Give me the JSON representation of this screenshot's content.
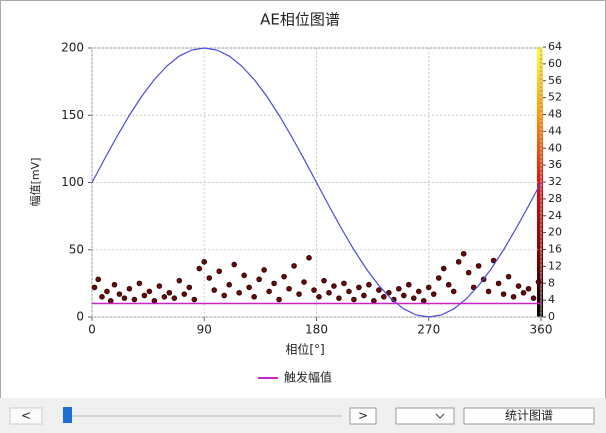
{
  "chart_data": {
    "type": "scatter",
    "title": "AE相位图谱",
    "x_label": "相位[°]",
    "y_label": "幅值[mV]",
    "xlim": [
      0,
      360
    ],
    "xticks": [
      0,
      90,
      180,
      270,
      360
    ],
    "ylim": [
      0,
      200
    ],
    "yticks": [
      0,
      50,
      100,
      150,
      200
    ],
    "grid": true,
    "curve": {
      "color": "#4a4ae0",
      "x": [
        0,
        10,
        20,
        30,
        40,
        50,
        60,
        70,
        80,
        90,
        100,
        110,
        120,
        130,
        140,
        150,
        160,
        170,
        180,
        190,
        200,
        210,
        220,
        230,
        240,
        250,
        260,
        270,
        280,
        290,
        300,
        310,
        320,
        330,
        340,
        350,
        360
      ],
      "values": [
        100,
        117.4,
        134.2,
        150,
        164.3,
        176.6,
        186.6,
        194,
        198.5,
        200,
        198.5,
        194,
        186.6,
        176.6,
        164.3,
        150,
        134.2,
        117.4,
        100,
        82.6,
        65.8,
        50,
        35.7,
        23.4,
        13.4,
        6,
        1.5,
        0,
        1.5,
        6,
        13.4,
        23.4,
        35.7,
        50,
        65.8,
        82.6,
        100
      ]
    },
    "threshold": {
      "name": "触发幅值",
      "color": "#cc22cc",
      "value": 10
    },
    "points": {
      "color": "#6b0a0a",
      "x": [
        2,
        5,
        8,
        12,
        15,
        18,
        22,
        26,
        30,
        34,
        38,
        42,
        46,
        50,
        54,
        58,
        62,
        66,
        70,
        74,
        78,
        82,
        86,
        90,
        94,
        98,
        102,
        106,
        110,
        114,
        118,
        122,
        126,
        130,
        134,
        138,
        142,
        146,
        150,
        154,
        158,
        162,
        166,
        170,
        174,
        178,
        182,
        186,
        190,
        194,
        198,
        202,
        206,
        210,
        214,
        218,
        222,
        226,
        230,
        234,
        238,
        242,
        246,
        250,
        254,
        258,
        262,
        266,
        270,
        274,
        278,
        282,
        286,
        290,
        294,
        298,
        302,
        306,
        310,
        314,
        318,
        322,
        326,
        330,
        334,
        338,
        342,
        346,
        350,
        354,
        358
      ],
      "values": [
        22,
        28,
        15,
        19,
        12,
        24,
        17,
        14,
        21,
        13,
        25,
        16,
        19,
        12,
        23,
        15,
        18,
        14,
        27,
        17,
        22,
        13,
        36,
        41,
        29,
        20,
        34,
        16,
        24,
        39,
        18,
        31,
        22,
        15,
        28,
        35,
        19,
        25,
        13,
        30,
        21,
        38,
        17,
        26,
        44,
        20,
        15,
        27,
        18,
        23,
        14,
        25,
        19,
        13,
        22,
        16,
        24,
        12,
        20,
        15,
        18,
        13,
        21,
        16,
        24,
        14,
        19,
        12,
        22,
        17,
        29,
        36,
        24,
        19,
        41,
        47,
        33,
        22,
        38,
        28,
        19,
        42,
        25,
        17,
        30,
        15,
        23,
        18,
        21,
        14,
        26
      ]
    },
    "colorbar": {
      "lim": [
        0,
        64
      ],
      "ticks": [
        0,
        4,
        8,
        12,
        16,
        20,
        24,
        28,
        32,
        36,
        40,
        44,
        48,
        52,
        56,
        60,
        64
      ]
    }
  },
  "ui": {
    "prev": "<",
    "next": ">",
    "button": "统计图谱"
  }
}
